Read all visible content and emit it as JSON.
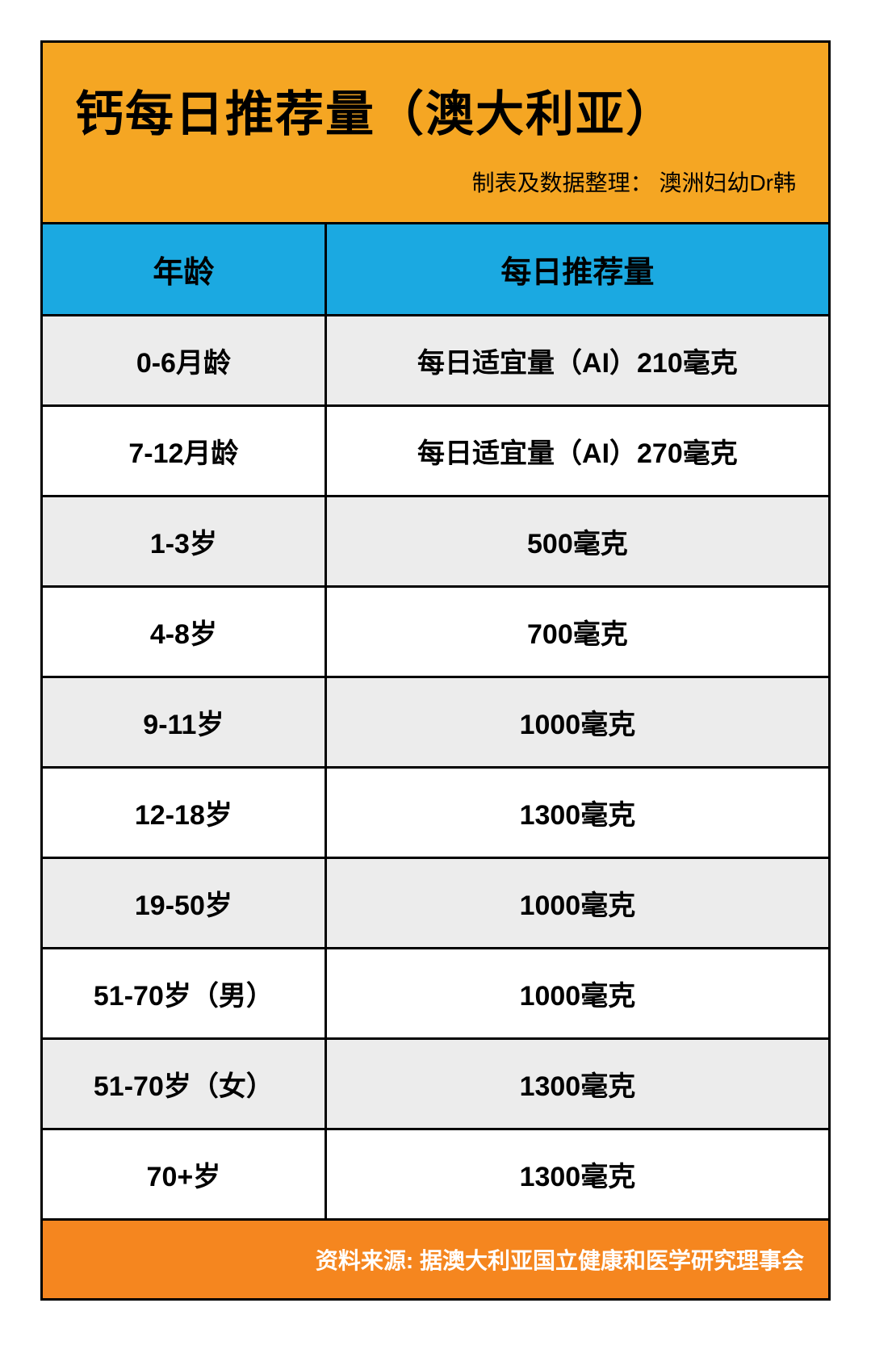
{
  "header": {
    "title": "钙每日推荐量（澳大利亚）",
    "subtitle": "制表及数据整理：  澳洲妇幼Dr韩"
  },
  "table": {
    "columns": [
      "年龄",
      "每日推荐量"
    ],
    "rows": [
      {
        "age": "0-6月龄",
        "value": "每日适宜量（AI）210毫克",
        "alt": true
      },
      {
        "age": "7-12月龄",
        "value": "每日适宜量（AI）270毫克",
        "alt": false
      },
      {
        "age": "1-3岁",
        "value": "500毫克",
        "alt": true
      },
      {
        "age": "4-8岁",
        "value": "700毫克",
        "alt": false
      },
      {
        "age": "9-11岁",
        "value": "1000毫克",
        "alt": true
      },
      {
        "age": "12-18岁",
        "value": "1300毫克",
        "alt": false
      },
      {
        "age": "19-50岁",
        "value": "1000毫克",
        "alt": true
      },
      {
        "age": "51-70岁（男）",
        "value": "1000毫克",
        "alt": false
      },
      {
        "age": "51-70岁（女）",
        "value": "1300毫克",
        "alt": true
      },
      {
        "age": "70+岁",
        "value": "1300毫克",
        "alt": false
      }
    ]
  },
  "footer": {
    "source": "资料来源: 据澳大利亚国立健康和医学研究理事会"
  },
  "colors": {
    "header_bg": "#f5a623",
    "table_header_bg": "#1ba9e1",
    "row_alt_bg": "#ececec",
    "row_plain_bg": "#ffffff",
    "footer_bg": "#f5861f",
    "border": "#000000",
    "text": "#000000",
    "footer_text": "#ffffff"
  }
}
